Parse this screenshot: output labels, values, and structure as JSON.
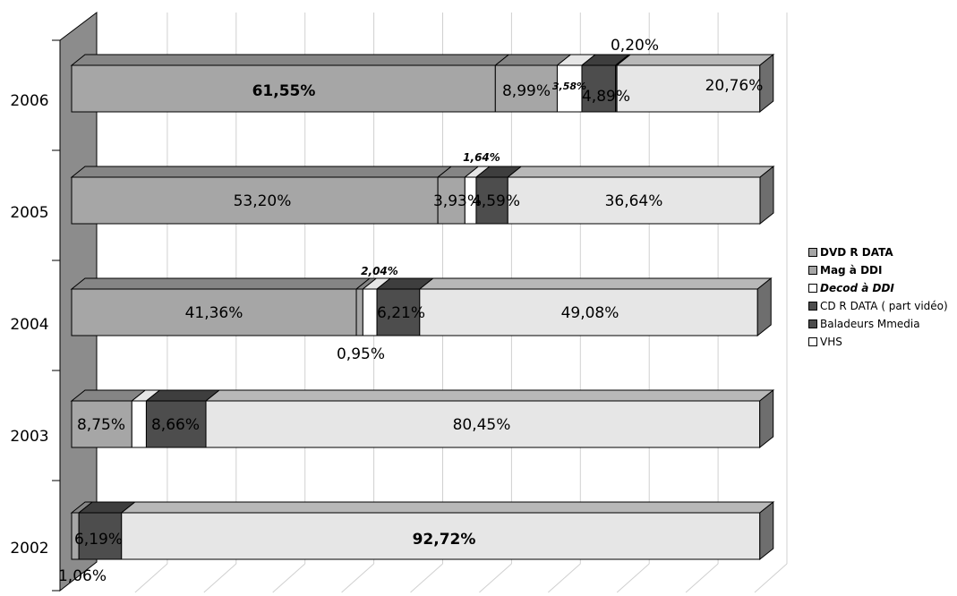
{
  "chart_data": {
    "type": "bar",
    "orientation": "horizontal",
    "stacked": "percent",
    "categories": [
      "2006",
      "2005",
      "2004",
      "2003",
      "2002"
    ],
    "series": [
      {
        "name": "DVD R DATA",
        "color": "#a6a6a6",
        "values": [
          61.55,
          53.2,
          41.36,
          0,
          0
        ]
      },
      {
        "name": "Mag à DDI",
        "color": "#a6a6a6",
        "values": [
          8.99,
          3.93,
          0.95,
          8.75,
          1.06
        ]
      },
      {
        "name": "Decod à DDI",
        "color": "#ffffff",
        "values": [
          3.58,
          1.64,
          2.04,
          2.1,
          0
        ]
      },
      {
        "name": "CD R DATA ( part vidéo)",
        "color": "#4d4d4d",
        "values": [
          4.89,
          4.59,
          6.21,
          8.66,
          6.19
        ]
      },
      {
        "name": "Baladeurs Mmedia",
        "color": "#4d4d4d",
        "values": [
          0.2,
          0,
          0,
          0,
          0
        ]
      },
      {
        "name": "VHS",
        "color": "#e6e6e6",
        "values": [
          20.76,
          36.64,
          49.08,
          80.45,
          92.72
        ]
      }
    ],
    "data_labels": [
      [
        "61,55%",
        "8,99%",
        "3,58%",
        "4,89%",
        "0,20%",
        "20,76%"
      ],
      [
        "53,20%",
        "3,93%",
        "1,64%",
        "4,59%",
        "",
        "36,64%"
      ],
      [
        "41,36%",
        "0,95%",
        "2,04%",
        "6,21%",
        "",
        "49,08%"
      ],
      [
        "",
        "8,75%",
        "",
        "8,66%",
        "",
        "80,45%"
      ],
      [
        "",
        "1,06%",
        "",
        "6,19%",
        "",
        "92,72%"
      ]
    ],
    "xlim": [
      0,
      100
    ],
    "grid": true,
    "legend": "right",
    "legend_entries": [
      {
        "text": "DVD R DATA",
        "style": "bold"
      },
      {
        "text": "Mag à DDI",
        "style": "bold"
      },
      {
        "text": "Decod à DDI",
        "style": "bold-italic"
      },
      {
        "text": "CD R DATA ( part vidéo)",
        "style": "normal"
      },
      {
        "text": "Baladeurs Mmedia",
        "style": "normal"
      },
      {
        "text": "VHS",
        "style": "normal"
      }
    ]
  }
}
